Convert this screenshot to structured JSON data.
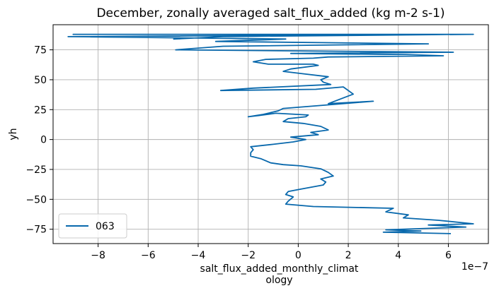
{
  "chart_data": {
    "type": "line",
    "title": "December, zonally averaged salt_flux_added (kg m-2 s-1)",
    "xlabel": "salt_flux_added_monthly_climat\nology",
    "ylabel": "yh",
    "x_offset_label": "1e−7",
    "x_scale": 1e-07,
    "xlim": [
      -9.8,
      7.6
    ],
    "ylim": [
      -87,
      96
    ],
    "xticks": [
      -8,
      -6,
      -4,
      -2,
      0,
      2,
      4,
      6
    ],
    "xtick_labels": [
      "−8",
      "−6",
      "−4",
      "−2",
      "0",
      "2",
      "4",
      "6"
    ],
    "yticks": [
      -75,
      -50,
      -25,
      0,
      25,
      50,
      75
    ],
    "ytick_labels": [
      "−75",
      "−50",
      "−25",
      "0",
      "25",
      "50",
      "75"
    ],
    "grid": true,
    "legend_position": "lower-left",
    "line_color": "#0868ac",
    "series": [
      {
        "name": "063",
        "x": [
          6.1,
          3.4,
          4.9,
          3.5,
          6.7,
          5.2,
          7.0,
          5.6,
          4.2,
          4.4,
          3.5,
          3.8,
          0.6,
          -0.5,
          -0.4,
          -0.2,
          -0.5,
          -0.4,
          0.1,
          1.0,
          1.1,
          0.9,
          1.4,
          1.2,
          0.9,
          0.1,
          -0.6,
          -1.1,
          -1.5,
          -1.9,
          -1.9,
          -1.8,
          -1.9,
          -1.0,
          -0.2,
          0.3,
          -0.3,
          0.8,
          0.5,
          1.2,
          0.9,
          0.2,
          -0.6,
          -0.4,
          0.3,
          0.4,
          -0.9,
          -1.6,
          -2.0,
          -1.4,
          -0.8,
          -0.6,
          3.0,
          1.2,
          2.2,
          1.8,
          0.7,
          -3.1,
          -1.8,
          1.3,
          1.0,
          0.9,
          1.2,
          0.2,
          -0.6,
          -0.3,
          0.8,
          0.6,
          -1.2,
          -1.8,
          -1.3,
          0.6,
          1.2,
          5.8,
          4.3,
          -0.3,
          6.2,
          -4.9,
          -3.0,
          5.2,
          -3.3,
          -0.5,
          -9.2,
          6.5,
          -9.0,
          7.0,
          -3.0,
          -5.0
        ],
        "y": [
          -78.7,
          -77.5,
          -76.5,
          -75.5,
          -73.2,
          -71.5,
          -70.5,
          -67.5,
          -65.5,
          -63.0,
          -60.5,
          -57.5,
          -56.0,
          -54.0,
          -51.5,
          -48.0,
          -46.0,
          -43.5,
          -41.5,
          -38.0,
          -35.5,
          -33.0,
          -30.5,
          -27.5,
          -24.5,
          -22.0,
          -21.0,
          -19.5,
          -16.0,
          -14.0,
          -11.0,
          -8.5,
          -6.0,
          -4.0,
          -2.0,
          0.0,
          2.0,
          4.0,
          6.0,
          8.0,
          11.0,
          13.5,
          15.0,
          17.5,
          19.0,
          20.5,
          22.0,
          20.0,
          19.0,
          21.0,
          24.0,
          26.0,
          32.0,
          30.0,
          38.0,
          44.0,
          42.0,
          41.0,
          43.0,
          46.0,
          48.0,
          50.0,
          52.5,
          55.0,
          57.0,
          59.0,
          62.0,
          63.0,
          63.0,
          65.0,
          67.0,
          68.0,
          69.0,
          70.0,
          71.0,
          72.0,
          73.0,
          75.0,
          78.0,
          80.0,
          82.0,
          84.0,
          86.0,
          88.0,
          88.0,
          88.0,
          86.0,
          84.0
        ]
      }
    ]
  }
}
